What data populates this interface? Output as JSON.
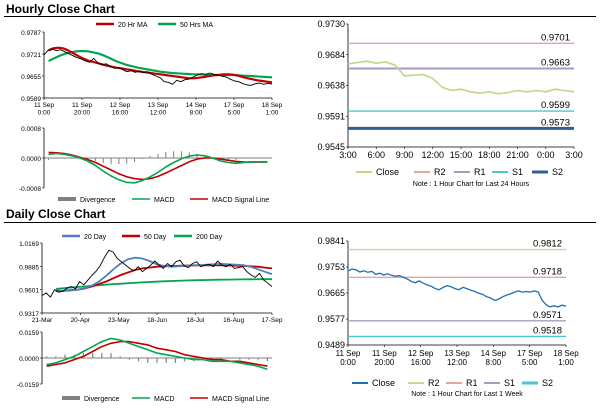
{
  "sections": {
    "hourly_title": "Hourly Close Chart",
    "daily_title": "Daily Close Chart"
  },
  "colors": {
    "close": "#000000",
    "ma20": "#c00000",
    "ma50": "#00a651",
    "ma200": "#00a651",
    "day20": "#4f81bd",
    "macd": "#00a651",
    "signal": "#c00000",
    "divergence": "#808080",
    "r2": "#e8a3a3",
    "r1": "#a999c4",
    "s1": "#4bc6cc",
    "s2": "#2e5f95",
    "close_levels_hourly": "#bcd88c",
    "close_levels_daily": "#1f6fb0",
    "r2_daily": "#c3da92"
  },
  "chart_data": [
    {
      "id": "hourly_price",
      "type": "line",
      "ylim": [
        0.9589,
        0.9787
      ],
      "y_ticks": [
        "0.9787",
        "0.9721",
        "0.9655",
        "0.9589"
      ],
      "x_ticks": [
        "11 Sep\n0:00",
        "11 Sep\n20:00",
        "12 Sep\n16:00",
        "13 Sep\n12:00",
        "14 Sep\n8:00",
        "17 Sep\n5:00",
        "18 Sep\n1:00"
      ],
      "legend": [
        "20 Hr MA",
        "50 Hrs MA"
      ],
      "series": [
        {
          "name": "Close",
          "values": [
            0.9718,
            0.9732,
            0.9736,
            0.9731,
            0.9734,
            0.9728,
            0.9722,
            0.9716,
            0.971,
            0.9706,
            0.97,
            0.9696,
            0.9708,
            0.9694,
            0.9688,
            0.9692,
            0.9684,
            0.9678,
            0.968,
            0.9674,
            0.9668,
            0.9671,
            0.9666,
            0.967,
            0.9665,
            0.9668,
            0.966,
            0.9655,
            0.965,
            0.9638,
            0.9636,
            0.963,
            0.9642,
            0.9638,
            0.9644,
            0.9646,
            0.9652,
            0.9658,
            0.9662,
            0.966,
            0.9664,
            0.966,
            0.9658,
            0.9654,
            0.9652,
            0.9645,
            0.964,
            0.9638,
            0.9632,
            0.9628,
            0.9627,
            0.9632,
            0.9634,
            0.963,
            0.9633,
            0.9631
          ]
        },
        {
          "name": "20 Hr MA",
          "values": [
            0.9732,
            0.9738,
            0.974,
            0.9738,
            0.9732,
            0.9724,
            0.9716,
            0.9708,
            0.9702,
            0.9698,
            0.9694,
            0.969,
            0.9686,
            0.9683,
            0.968,
            0.9678,
            0.9675,
            0.9673,
            0.967,
            0.9668,
            0.9666,
            0.9664,
            0.9662,
            0.966,
            0.9658,
            0.9656,
            0.9654,
            0.9652,
            0.965,
            0.9648,
            0.9648,
            0.965,
            0.9652,
            0.9655,
            0.9657,
            0.9658,
            0.966,
            0.966,
            0.9659,
            0.9656,
            0.9652,
            0.9648,
            0.9645,
            0.9642,
            0.964,
            0.9638,
            0.9636
          ]
        },
        {
          "name": "50 Hrs MA",
          "values": [
            0.97,
            0.9708,
            0.9716,
            0.9722,
            0.9726,
            0.9729,
            0.973,
            0.9729,
            0.9726,
            0.9722,
            0.9716,
            0.9708,
            0.97,
            0.9694,
            0.9688,
            0.9684,
            0.968,
            0.9677,
            0.9674,
            0.9671,
            0.9668,
            0.9666,
            0.9664,
            0.9663,
            0.9662,
            0.9661,
            0.966,
            0.966,
            0.9659,
            0.9658,
            0.9658,
            0.9658,
            0.9658,
            0.9658,
            0.9657,
            0.9656,
            0.9655,
            0.9654,
            0.9653,
            0.9652,
            0.9651
          ]
        }
      ]
    },
    {
      "id": "hourly_macd",
      "type": "line",
      "ylim": [
        -0.0008,
        0.0008
      ],
      "y_ticks": [
        "0.0008",
        "0.0000",
        "-0.0008"
      ],
      "legend": [
        "Divergence",
        "MACD",
        "MACD Signal Line"
      ],
      "series": [
        {
          "name": "MACD",
          "values": [
            0.0001,
            0.00012,
            0.0001,
            6e-05,
            0.0,
            -8e-05,
            -0.0002,
            -0.00035,
            -0.00048,
            -0.00058,
            -0.00065,
            -0.00066,
            -0.0006,
            -0.0005,
            -0.00038,
            -0.00024,
            -0.00012,
            -2e-05,
            5e-05,
            8e-05,
            6e-05,
            0.0,
            -8e-05,
            -0.00012,
            -0.00014,
            -0.00012,
            -0.0001,
            -0.0001,
            -0.00011
          ]
        },
        {
          "name": "MACD Signal Line",
          "values": [
            0.00015,
            0.00014,
            0.00012,
            8e-05,
            2e-05,
            -4e-05,
            -0.00012,
            -0.00022,
            -0.00032,
            -0.00042,
            -0.0005,
            -0.00055,
            -0.00057,
            -0.00055,
            -0.00049,
            -0.0004,
            -0.0003,
            -0.0002,
            -0.0001,
            -3e-05,
            0.0,
            0.0,
            -3e-05,
            -6e-05,
            -9e-05,
            -0.00011,
            -0.00011,
            -0.00011,
            -0.00011
          ]
        },
        {
          "name": "Divergence",
          "values": [
            -5e-05,
            -2e-05,
            -2e-05,
            -2e-05,
            -2e-05,
            -4e-05,
            -8e-05,
            -0.00013,
            -0.00016,
            -0.00016,
            -0.00015,
            -0.00011,
            -3e-05,
            5e-05,
            0.00011,
            0.00016,
            0.00018,
            0.00018,
            0.00015,
            0.00011,
            6e-05,
            0.0,
            -5e-05,
            -6e-05,
            -5e-05,
            -1e-05,
            1e-05,
            1e-05,
            0.0
          ]
        }
      ]
    },
    {
      "id": "hourly_levels",
      "type": "line",
      "ylim": [
        0.9545,
        0.973
      ],
      "y_ticks": [
        "0.9730",
        "0.9684",
        "0.9638",
        "0.9591",
        "0.9545"
      ],
      "x_ticks": [
        "3:00",
        "6:00",
        "9:00",
        "12:00",
        "15:00",
        "18:00",
        "21:00",
        "0:00",
        "3:00"
      ],
      "legend": [
        "Close",
        "R2",
        "R1",
        "S1",
        "S2"
      ],
      "note": "Note : 1 Hour Chart for Last 24 Hours",
      "levels": [
        {
          "name": "R2",
          "value": 0.9701,
          "label": "0.9701"
        },
        {
          "name": "R1",
          "value": 0.9663,
          "label": "0.9663"
        },
        {
          "name": "S1",
          "value": 0.9599,
          "label": "0.9599"
        },
        {
          "name": "S2",
          "value": 0.9573,
          "label": "0.9573"
        }
      ],
      "series": [
        {
          "name": "Close",
          "values": [
            0.967,
            0.9672,
            0.9674,
            0.9671,
            0.9673,
            0.9668,
            0.9652,
            0.9653,
            0.9654,
            0.9648,
            0.9635,
            0.963,
            0.9632,
            0.9628,
            0.9626,
            0.9628,
            0.9625,
            0.9627,
            0.963,
            0.9628,
            0.963,
            0.9628,
            0.9632,
            0.963,
            0.9628
          ]
        }
      ]
    },
    {
      "id": "daily_price",
      "type": "line",
      "ylim": [
        0.9317,
        1.0169
      ],
      "y_ticks": [
        "1.0169",
        "0.9885",
        "0.9601",
        "0.9317"
      ],
      "x_ticks": [
        "21-Mar",
        "20-Apr",
        "23-May",
        "18-Jun",
        "18-Jul",
        "16-Aug",
        "17-Sep"
      ],
      "legend": [
        "20 Day",
        "50 Day",
        "200 Day"
      ],
      "series": [
        {
          "name": "Close",
          "values": [
            0.953,
            0.956,
            0.951,
            0.96,
            0.957,
            0.958,
            0.962,
            0.964,
            0.961,
            0.97,
            0.966,
            0.972,
            0.978,
            0.983,
            0.99,
            1.0,
            1.008,
            1.006,
            0.998,
            0.994,
            0.99,
            0.986,
            0.983,
            0.988,
            0.982,
            0.986,
            0.99,
            0.995,
            0.99,
            0.986,
            0.992,
            0.988,
            0.994,
            0.996,
            0.989,
            0.987,
            0.992,
            0.994,
            0.988,
            0.99,
            0.991,
            0.988,
            0.995,
            0.99,
            0.988,
            0.991,
            0.986,
            0.987,
            0.988,
            0.982,
            0.978,
            0.975,
            0.98,
            0.972,
            0.968,
            0.964
          ]
        },
        {
          "name": "20 Day",
          "values": [
            0.958,
            0.9585,
            0.959,
            0.96,
            0.962,
            0.965,
            0.97,
            0.977,
            0.985,
            0.992,
            0.997,
            0.999,
            0.998,
            0.995,
            0.991,
            0.989,
            0.988,
            0.9885,
            0.989,
            0.99,
            0.99,
            0.9905,
            0.991,
            0.9915,
            0.991,
            0.9905,
            0.99,
            0.988,
            0.985,
            0.982,
            0.979
          ]
        },
        {
          "name": "50 Day",
          "values": [
            0.959,
            0.959,
            0.9595,
            0.96,
            0.9615,
            0.964,
            0.967,
            0.97,
            0.974,
            0.978,
            0.981,
            0.984,
            0.986,
            0.987,
            0.988,
            0.9885,
            0.989,
            0.9892,
            0.9895,
            0.9895,
            0.9896,
            0.9897,
            0.9898,
            0.9897,
            0.9895,
            0.9893,
            0.989,
            0.9885,
            0.988,
            0.987,
            0.986
          ]
        },
        {
          "name": "200 Day",
          "values": [
            0.961,
            0.9622,
            0.9634,
            0.9645,
            0.9655,
            0.9665,
            0.9674,
            0.9682,
            0.969,
            0.9697,
            0.9703,
            0.9708,
            0.9712,
            0.9716,
            0.9719,
            0.9722,
            0.9724,
            0.9726,
            0.9727,
            0.9728,
            0.9728
          ]
        }
      ]
    },
    {
      "id": "daily_macd",
      "type": "line",
      "ylim": [
        -0.0159,
        0.0159
      ],
      "y_ticks": [
        "0.0159",
        "0.0000",
        "-0.0159"
      ],
      "legend": [
        "Divergence",
        "MACD",
        "MACD Signal Line"
      ],
      "series": [
        {
          "name": "MACD",
          "values": [
            -0.004,
            -0.003,
            -0.001,
            0.001,
            0.004,
            0.007,
            0.01,
            0.012,
            0.011,
            0.009,
            0.007,
            0.005,
            0.003,
            0.002,
            0.001,
            0.0,
            -0.001,
            -0.001,
            -0.002,
            -0.002,
            -0.002,
            -0.003,
            -0.004,
            -0.005,
            -0.007
          ]
        },
        {
          "name": "MACD Signal Line",
          "values": [
            -0.005,
            -0.004,
            -0.003,
            -0.001,
            0.001,
            0.004,
            0.007,
            0.009,
            0.01,
            0.01,
            0.009,
            0.008,
            0.006,
            0.005,
            0.004,
            0.002,
            0.001,
            0.0,
            -0.001,
            -0.001,
            -0.002,
            -0.002,
            -0.003,
            -0.004,
            -0.005
          ]
        },
        {
          "name": "Divergence",
          "values": [
            0.001,
            0.001,
            0.002,
            0.002,
            0.003,
            0.003,
            0.003,
            0.003,
            0.001,
            -0.001,
            -0.002,
            -0.003,
            -0.003,
            -0.003,
            -0.003,
            -0.002,
            -0.002,
            -0.001,
            -0.001,
            -0.001,
            0.0,
            -0.001,
            -0.001,
            -0.001,
            -0.002
          ]
        }
      ]
    },
    {
      "id": "daily_levels",
      "type": "line",
      "ylim": [
        0.9489,
        0.9841
      ],
      "y_ticks": [
        "0.9841",
        "0.9753",
        "0.9665",
        "0.9577",
        "0.9489"
      ],
      "x_ticks": [
        "11 Sep\n0:00",
        "11 Sep\n20:00",
        "12 Sep\n16:00",
        "13 Sep\n12:00",
        "14 Sep\n8:00",
        "17 Sep\n5:00",
        "18 Sep\n1:00"
      ],
      "legend": [
        "Close",
        "R2",
        "R1",
        "S1",
        "S2"
      ],
      "note": "Note : 1 Hour Chart for Last 1 Week",
      "levels": [
        {
          "name": "R2",
          "value": 0.9812,
          "label": "0.9812"
        },
        {
          "name": "R1",
          "value": 0.9718,
          "label": "0.9718"
        },
        {
          "name": "S1",
          "value": 0.9571,
          "label": "0.9571"
        },
        {
          "name": "S2",
          "value": 0.9518,
          "label": "0.9518"
        }
      ],
      "series": [
        {
          "name": "Close",
          "values": [
            0.974,
            0.9746,
            0.9744,
            0.9736,
            0.974,
            0.9735,
            0.9738,
            0.9728,
            0.9732,
            0.9726,
            0.973,
            0.9725,
            0.9722,
            0.9724,
            0.9718,
            0.9712,
            0.9704,
            0.97,
            0.9706,
            0.9698,
            0.9692,
            0.9688,
            0.968,
            0.9676,
            0.9684,
            0.969,
            0.9686,
            0.968,
            0.9676,
            0.9684,
            0.968,
            0.9674,
            0.967,
            0.9664,
            0.966,
            0.9652,
            0.9648,
            0.964,
            0.9644,
            0.9652,
            0.9658,
            0.9662,
            0.9668,
            0.9672,
            0.9668,
            0.967,
            0.9668,
            0.9672,
            0.9668,
            0.964,
            0.9625,
            0.9618,
            0.9622,
            0.9618,
            0.9624,
            0.962
          ]
        }
      ]
    }
  ]
}
